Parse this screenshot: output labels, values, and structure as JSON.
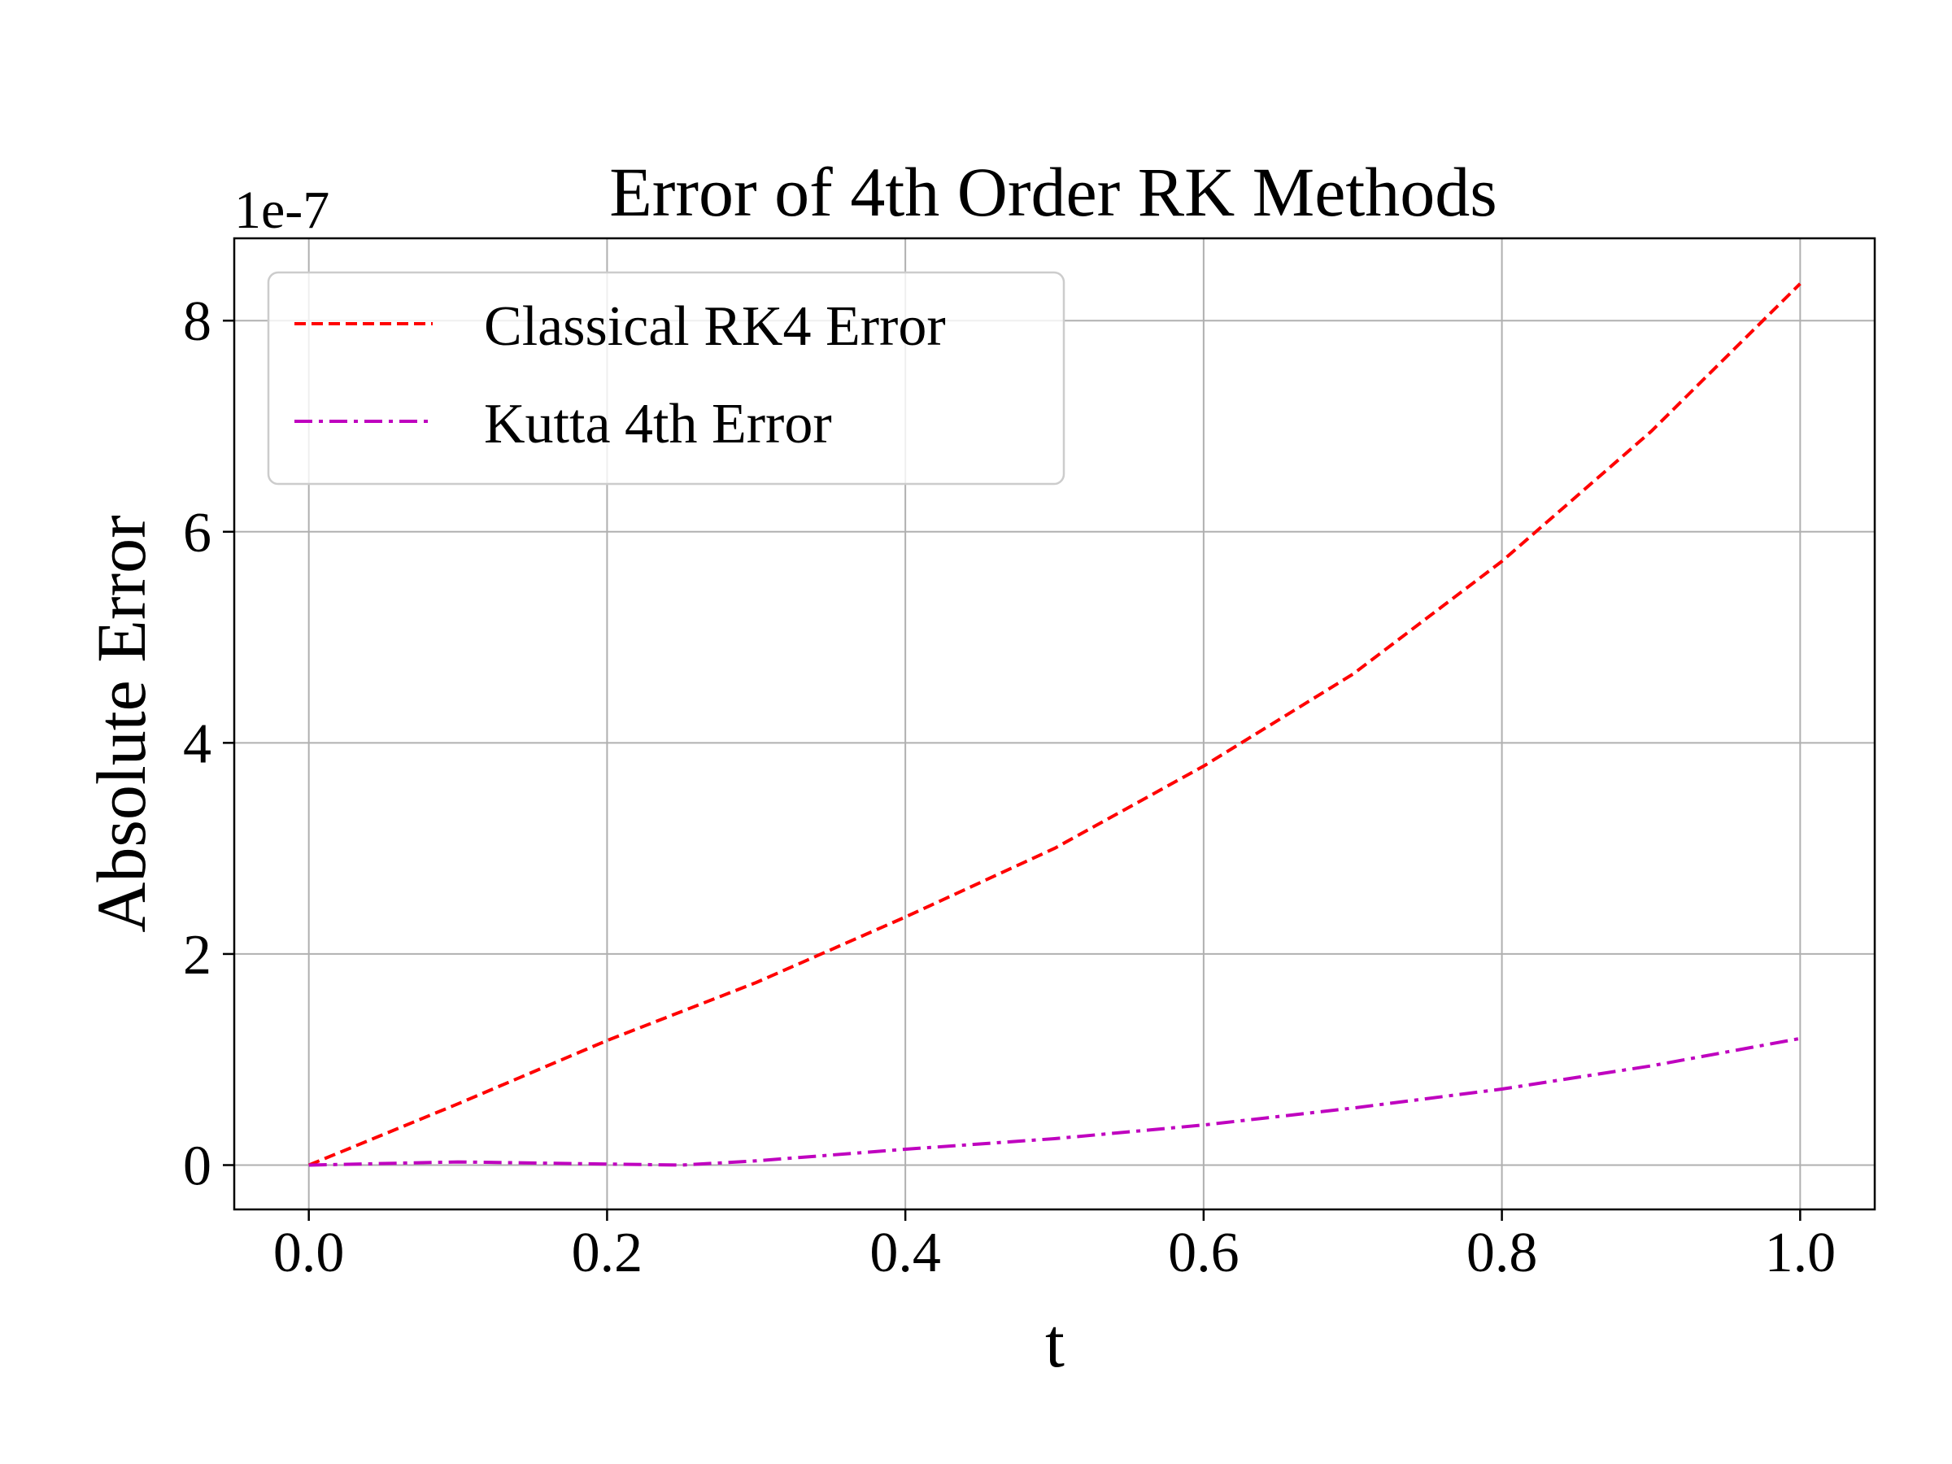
{
  "chart_data": {
    "type": "line",
    "title": "Error of 4th Order RK Methods",
    "xlabel": "t",
    "ylabel": "Absolute Error",
    "offset_label": "1e-7",
    "xlim": [
      -0.05,
      1.05
    ],
    "ylim": [
      -0.42,
      8.78
    ],
    "xticks": [
      0.0,
      0.2,
      0.4,
      0.6,
      0.8,
      1.0
    ],
    "xtick_labels": [
      "0.0",
      "0.2",
      "0.4",
      "0.6",
      "0.8",
      "1.0"
    ],
    "yticks": [
      0,
      2,
      4,
      6,
      8
    ],
    "ytick_labels": [
      "0",
      "2",
      "4",
      "6",
      "8"
    ],
    "grid": true,
    "legend_position": "upper-left",
    "series": [
      {
        "name": "Classical RK4 Error",
        "color": "#ff0000",
        "dash": "dashed",
        "x": [
          0.0,
          0.1,
          0.2,
          0.3,
          0.4,
          0.5,
          0.6,
          0.7,
          0.8,
          0.9,
          1.0
        ],
        "y": [
          0.0,
          0.58,
          1.18,
          1.73,
          2.35,
          3.0,
          3.78,
          4.65,
          5.72,
          6.95,
          8.35
        ]
      },
      {
        "name": "Kutta 4th Error",
        "color": "#bf00bf",
        "dash": "dashdot",
        "x": [
          0.0,
          0.1,
          0.2,
          0.25,
          0.3,
          0.4,
          0.5,
          0.6,
          0.7,
          0.8,
          0.9,
          1.0
        ],
        "y": [
          0.0,
          0.03,
          0.01,
          0.0,
          0.04,
          0.15,
          0.25,
          0.38,
          0.54,
          0.72,
          0.94,
          1.2
        ]
      }
    ]
  }
}
